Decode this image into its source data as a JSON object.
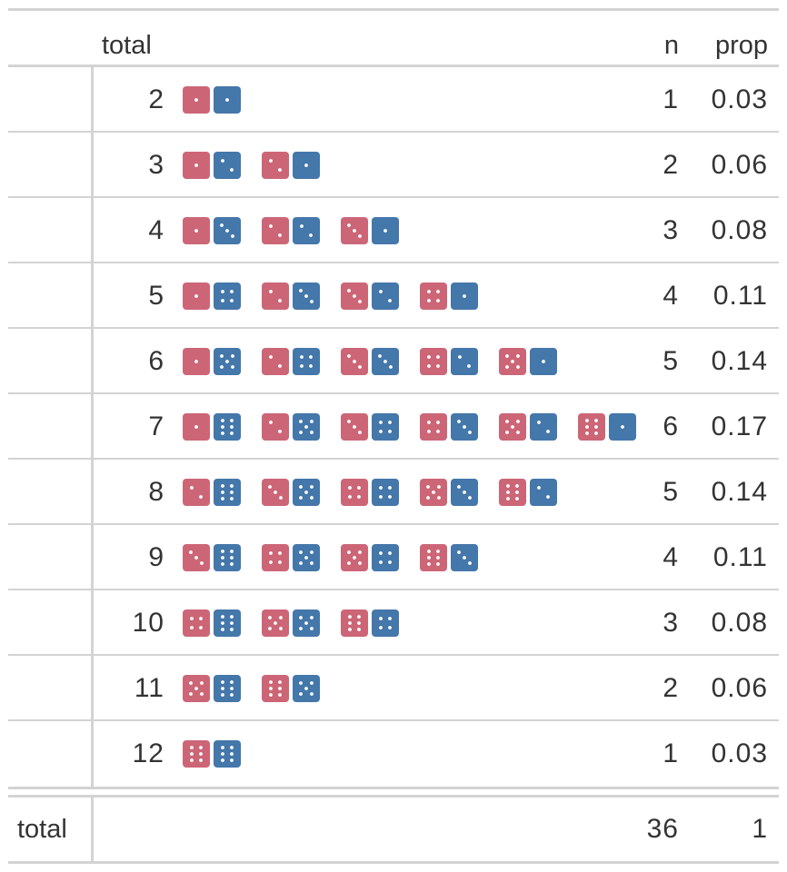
{
  "colors": {
    "die_a": "#cc6677",
    "die_b": "#4477aa",
    "rule": "#d3d3d3",
    "text": "#333333"
  },
  "header": {
    "col_total": "total",
    "col_n": "n",
    "col_prop": "prop"
  },
  "rows": [
    {
      "total": "2",
      "n": "1",
      "prop": "0.03",
      "pairs": [
        [
          1,
          1
        ]
      ]
    },
    {
      "total": "3",
      "n": "2",
      "prop": "0.06",
      "pairs": [
        [
          1,
          2
        ],
        [
          2,
          1
        ]
      ]
    },
    {
      "total": "4",
      "n": "3",
      "prop": "0.08",
      "pairs": [
        [
          1,
          3
        ],
        [
          2,
          2
        ],
        [
          3,
          1
        ]
      ]
    },
    {
      "total": "5",
      "n": "4",
      "prop": "0.11",
      "pairs": [
        [
          1,
          4
        ],
        [
          2,
          3
        ],
        [
          3,
          2
        ],
        [
          4,
          1
        ]
      ]
    },
    {
      "total": "6",
      "n": "5",
      "prop": "0.14",
      "pairs": [
        [
          1,
          5
        ],
        [
          2,
          4
        ],
        [
          3,
          3
        ],
        [
          4,
          2
        ],
        [
          5,
          1
        ]
      ]
    },
    {
      "total": "7",
      "n": "6",
      "prop": "0.17",
      "pairs": [
        [
          1,
          6
        ],
        [
          2,
          5
        ],
        [
          3,
          4
        ],
        [
          4,
          3
        ],
        [
          5,
          2
        ],
        [
          6,
          1
        ]
      ]
    },
    {
      "total": "8",
      "n": "5",
      "prop": "0.14",
      "pairs": [
        [
          2,
          6
        ],
        [
          3,
          5
        ],
        [
          4,
          4
        ],
        [
          5,
          3
        ],
        [
          6,
          2
        ]
      ]
    },
    {
      "total": "9",
      "n": "4",
      "prop": "0.11",
      "pairs": [
        [
          3,
          6
        ],
        [
          4,
          5
        ],
        [
          5,
          4
        ],
        [
          6,
          3
        ]
      ]
    },
    {
      "total": "10",
      "n": "3",
      "prop": "0.08",
      "pairs": [
        [
          4,
          6
        ],
        [
          5,
          5
        ],
        [
          6,
          4
        ]
      ]
    },
    {
      "total": "11",
      "n": "2",
      "prop": "0.06",
      "pairs": [
        [
          5,
          6
        ],
        [
          6,
          5
        ]
      ]
    },
    {
      "total": "12",
      "n": "1",
      "prop": "0.03",
      "pairs": [
        [
          6,
          6
        ]
      ]
    }
  ],
  "footer": {
    "label": "total",
    "n": "36",
    "prop": "1"
  }
}
